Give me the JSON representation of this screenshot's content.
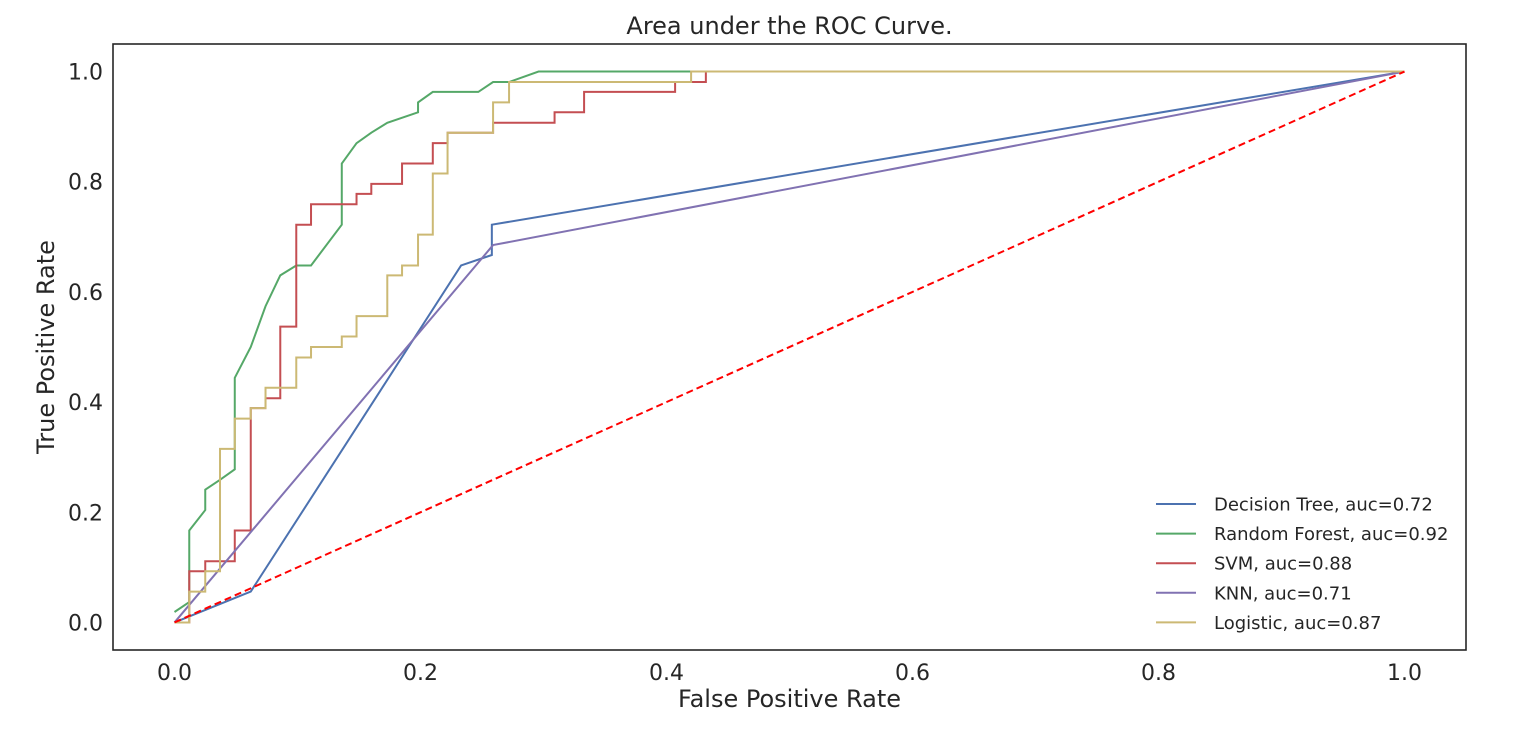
{
  "chart_data": {
    "type": "line",
    "title": "Area under the ROC Curve.",
    "xlabel": "False Positive Rate",
    "ylabel": "True Positive Rate",
    "xlim": [
      -0.05,
      1.05
    ],
    "ylim": [
      -0.05,
      1.05
    ],
    "xticks": [
      0.0,
      0.2,
      0.4,
      0.6,
      0.8,
      1.0
    ],
    "yticks": [
      0.0,
      0.2,
      0.4,
      0.6,
      0.8,
      1.0
    ],
    "xtick_labels": [
      "0.0",
      "0.2",
      "0.4",
      "0.6",
      "0.8",
      "1.0"
    ],
    "ytick_labels": [
      "0.0",
      "0.2",
      "0.4",
      "0.6",
      "0.8",
      "1.0"
    ],
    "grid": false,
    "legend_position": "bottom-right",
    "series": [
      {
        "name": "Decision Tree, auc=0.72",
        "color": "#4c72b0",
        "x": [
          0.0,
          0.062,
          0.233,
          0.258,
          0.258,
          1.0
        ],
        "y": [
          0.0,
          0.056,
          0.648,
          0.667,
          0.722,
          1.0
        ]
      },
      {
        "name": "Random Forest, auc=0.92",
        "color": "#55a868",
        "x": [
          0.0,
          0.012,
          0.012,
          0.025,
          0.025,
          0.037,
          0.049,
          0.049,
          0.062,
          0.074,
          0.086,
          0.099,
          0.111,
          0.136,
          0.136,
          0.148,
          0.16,
          0.173,
          0.198,
          0.198,
          0.21,
          0.21,
          0.247,
          0.259,
          0.259,
          0.272,
          0.296,
          0.42,
          1.0
        ],
        "y": [
          0.019,
          0.037,
          0.167,
          0.204,
          0.241,
          0.259,
          0.278,
          0.444,
          0.5,
          0.574,
          0.63,
          0.648,
          0.648,
          0.722,
          0.833,
          0.87,
          0.889,
          0.907,
          0.926,
          0.944,
          0.963,
          0.963,
          0.963,
          0.981,
          0.981,
          0.981,
          1.0,
          1.0,
          1.0
        ]
      },
      {
        "name": "SVM, auc=0.88",
        "color": "#c44e52",
        "x": [
          0.0,
          0.0,
          0.012,
          0.012,
          0.025,
          0.025,
          0.049,
          0.049,
          0.062,
          0.062,
          0.074,
          0.074,
          0.086,
          0.086,
          0.099,
          0.099,
          0.111,
          0.111,
          0.148,
          0.148,
          0.16,
          0.16,
          0.185,
          0.185,
          0.21,
          0.21,
          0.222,
          0.222,
          0.259,
          0.259,
          0.309,
          0.309,
          0.333,
          0.333,
          0.407,
          0.407,
          0.432,
          0.432,
          1.0
        ],
        "y": [
          0.0,
          0.0,
          0.0,
          0.093,
          0.093,
          0.111,
          0.111,
          0.167,
          0.167,
          0.389,
          0.389,
          0.407,
          0.407,
          0.537,
          0.537,
          0.722,
          0.722,
          0.759,
          0.759,
          0.778,
          0.778,
          0.796,
          0.796,
          0.833,
          0.833,
          0.87,
          0.87,
          0.889,
          0.889,
          0.907,
          0.907,
          0.926,
          0.926,
          0.963,
          0.963,
          0.981,
          0.981,
          1.0,
          1.0
        ]
      },
      {
        "name": "KNN, auc=0.71",
        "color": "#8172b2",
        "x": [
          0.0,
          0.259,
          1.0
        ],
        "y": [
          0.0,
          0.685,
          1.0
        ]
      },
      {
        "name": "Logistic, auc=0.87",
        "color": "#ccb974",
        "x": [
          0.0,
          0.012,
          0.012,
          0.025,
          0.025,
          0.037,
          0.037,
          0.049,
          0.049,
          0.062,
          0.062,
          0.074,
          0.074,
          0.099,
          0.099,
          0.111,
          0.111,
          0.136,
          0.136,
          0.148,
          0.148,
          0.173,
          0.173,
          0.185,
          0.185,
          0.198,
          0.198,
          0.21,
          0.21,
          0.222,
          0.222,
          0.259,
          0.259,
          0.272,
          0.272,
          0.42,
          0.42,
          1.0
        ],
        "y": [
          0.0,
          0.0,
          0.056,
          0.056,
          0.093,
          0.093,
          0.315,
          0.315,
          0.37,
          0.37,
          0.389,
          0.389,
          0.426,
          0.426,
          0.481,
          0.481,
          0.5,
          0.5,
          0.519,
          0.519,
          0.556,
          0.556,
          0.63,
          0.63,
          0.648,
          0.648,
          0.704,
          0.704,
          0.815,
          0.815,
          0.889,
          0.889,
          0.944,
          0.944,
          0.981,
          0.981,
          1.0,
          1.0
        ]
      }
    ],
    "reference_line": {
      "color": "#ff0000",
      "style": "dashed",
      "x": [
        0.0,
        1.0
      ],
      "y": [
        0.0,
        1.0
      ]
    }
  }
}
